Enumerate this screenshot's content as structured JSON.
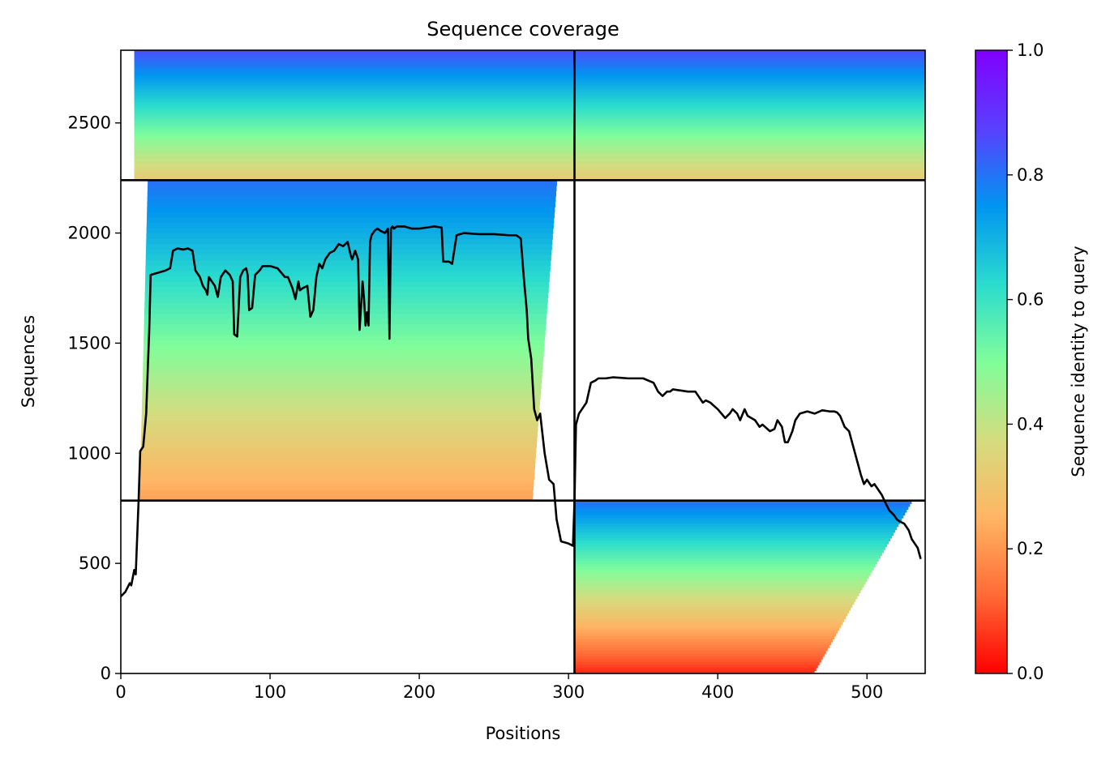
{
  "chart_data": {
    "type": "heatmap",
    "title": "Sequence coverage",
    "xlabel": "Positions",
    "ylabel": "Sequences",
    "xlim": [
      0,
      539
    ],
    "ylim": [
      0,
      2830
    ],
    "xticks": [
      0,
      100,
      200,
      300,
      400,
      500
    ],
    "yticks": [
      0,
      500,
      1000,
      1500,
      2000,
      2500
    ],
    "colorbar": {
      "label": "Sequence identity to query",
      "range": [
        0,
        1
      ],
      "ticks": [
        0.0,
        0.2,
        0.4,
        0.6,
        0.8,
        1.0
      ],
      "colormap": "rainbow",
      "stops": [
        "#ff0000",
        "#ff6a36",
        "#ffb563",
        "#d4dc7f",
        "#80fd9b",
        "#2adcce",
        "#0095f0",
        "#5a3ffe",
        "#8000ff"
      ]
    },
    "chain_boundaries": {
      "x_divider": 304,
      "y_dividers": [
        785,
        2240
      ]
    },
    "blocks": [
      {
        "name": "chain-1-msa",
        "x_range": [
          0,
          304
        ],
        "y_range": [
          785,
          2240
        ],
        "identity_top": 0.8,
        "identity_bottom": 0.22,
        "start_col": 18,
        "end_col": 276
      },
      {
        "name": "paired-msa",
        "x_range": [
          0,
          539
        ],
        "y_range": [
          2240,
          2830
        ],
        "identity_top": 0.85,
        "identity_bottom": 0.32,
        "start_col": 9,
        "end_col": 539
      },
      {
        "name": "chain-2-msa",
        "x_range": [
          304,
          539
        ],
        "y_range": [
          0,
          785
        ],
        "identity_top": 0.8,
        "identity_bottom": 0.05,
        "start_col": 304,
        "end_col": 530
      }
    ],
    "coverage_line": {
      "color": "#000000",
      "x": [
        0,
        3,
        6,
        7,
        9,
        10,
        12,
        13,
        15,
        17,
        18,
        19,
        20,
        25,
        30,
        33,
        35,
        38,
        42,
        45,
        48,
        50,
        53,
        55,
        57,
        58,
        59,
        61,
        63,
        65,
        67,
        70,
        73,
        75,
        76,
        78,
        80,
        82,
        84,
        85,
        86,
        88,
        90,
        93,
        95,
        100,
        105,
        110,
        112,
        115,
        117,
        119,
        120,
        122,
        125,
        127,
        129,
        131,
        133,
        135,
        137,
        140,
        143,
        146,
        149,
        152,
        154,
        155,
        157,
        159,
        160,
        162,
        163,
        164,
        165,
        166,
        167,
        168,
        169,
        170,
        172,
        174,
        177,
        179,
        180,
        181,
        182,
        183,
        185,
        190,
        195,
        200,
        205,
        210,
        215,
        216,
        218,
        220,
        222,
        225,
        230,
        240,
        250,
        260,
        265,
        268,
        270,
        272,
        273,
        275,
        277,
        279,
        281,
        284,
        287,
        290,
        292,
        295,
        300,
        303,
        304,
        305,
        307,
        309,
        310,
        312,
        315,
        318,
        320,
        322,
        325,
        330,
        340,
        350,
        357,
        360,
        363,
        366,
        368,
        370,
        375,
        380,
        385,
        390,
        392,
        395,
        400,
        405,
        408,
        410,
        413,
        415,
        418,
        420,
        425,
        428,
        430,
        435,
        438,
        440,
        443,
        445,
        447,
        450,
        452,
        455,
        460,
        465,
        470,
        475,
        478,
        480,
        482,
        485,
        488,
        490,
        492,
        494,
        496,
        498,
        500,
        503,
        505,
        507,
        510,
        512,
        515,
        518,
        520,
        522,
        525,
        528,
        530,
        532,
        534,
        536,
        538,
        539
      ],
      "y": [
        350,
        370,
        410,
        400,
        470,
        450,
        800,
        1010,
        1030,
        1180,
        1370,
        1550,
        1810,
        1820,
        1830,
        1840,
        1920,
        1930,
        1925,
        1930,
        1920,
        1830,
        1800,
        1760,
        1740,
        1720,
        1800,
        1780,
        1760,
        1710,
        1800,
        1830,
        1810,
        1780,
        1540,
        1530,
        1800,
        1830,
        1840,
        1810,
        1650,
        1660,
        1810,
        1830,
        1850,
        1850,
        1840,
        1800,
        1800,
        1750,
        1700,
        1780,
        1740,
        1750,
        1760,
        1620,
        1650,
        1800,
        1860,
        1840,
        1880,
        1910,
        1920,
        1950,
        1940,
        1960,
        1900,
        1880,
        1920,
        1880,
        1560,
        1780,
        1700,
        1580,
        1640,
        1580,
        1960,
        1990,
        2000,
        2010,
        2020,
        2010,
        2000,
        2020,
        1520,
        2020,
        2030,
        2020,
        2030,
        2030,
        2020,
        2020,
        2025,
        2030,
        2025,
        1870,
        1870,
        1870,
        1860,
        1990,
        2000,
        1995,
        1995,
        1990,
        1990,
        1975,
        1800,
        1650,
        1520,
        1430,
        1200,
        1150,
        1180,
        1000,
        880,
        860,
        700,
        600,
        590,
        580,
        780,
        1130,
        1180,
        1200,
        1210,
        1230,
        1320,
        1330,
        1340,
        1340,
        1340,
        1345,
        1340,
        1340,
        1320,
        1280,
        1260,
        1280,
        1280,
        1290,
        1285,
        1280,
        1280,
        1230,
        1240,
        1230,
        1200,
        1160,
        1180,
        1200,
        1180,
        1150,
        1200,
        1170,
        1150,
        1120,
        1130,
        1100,
        1110,
        1150,
        1120,
        1050,
        1050,
        1100,
        1150,
        1180,
        1190,
        1180,
        1195,
        1190,
        1190,
        1185,
        1170,
        1120,
        1100,
        1050,
        1000,
        950,
        900,
        860,
        880,
        850,
        860,
        840,
        810,
        780,
        740,
        720,
        700,
        690,
        680,
        650,
        610,
        590,
        570,
        520
      ]
    }
  }
}
